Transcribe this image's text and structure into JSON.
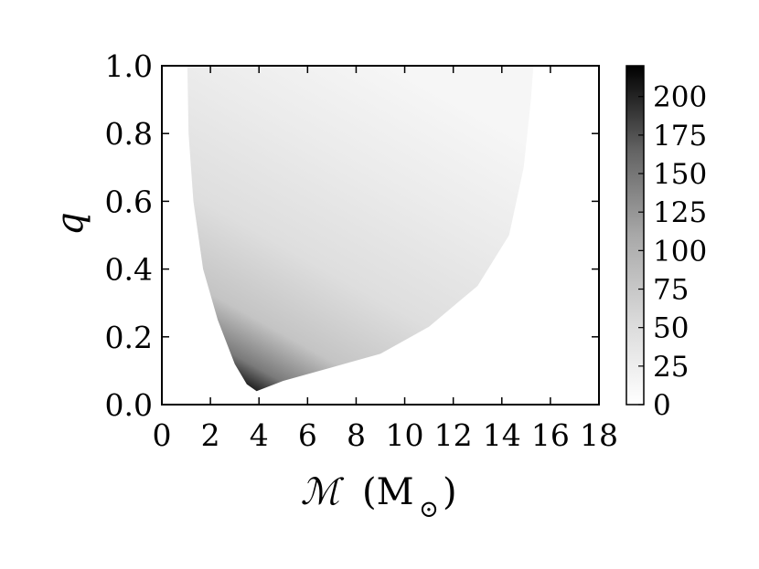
{
  "chart_data": {
    "type": "heatmap",
    "title": "",
    "xlabel": "ℳ",
    "xlabel_unit_open": "(M",
    "xlabel_unit_subscript": "⊙",
    "xlabel_unit_close": ")",
    "ylabel": "q",
    "xlim": [
      0,
      18
    ],
    "ylim": [
      0.0,
      1.0
    ],
    "x_ticks": [
      "0",
      "2",
      "4",
      "6",
      "8",
      "10",
      "12",
      "14",
      "16",
      "18"
    ],
    "y_ticks": [
      "0.0",
      "0.2",
      "0.4",
      "0.6",
      "0.8",
      "1.0"
    ],
    "colorbar": {
      "ticks": [
        "0",
        "25",
        "50",
        "75",
        "100",
        "125",
        "150",
        "175",
        "200"
      ],
      "range": [
        0,
        220
      ],
      "colormap": "Greys"
    },
    "region": {
      "description_points_left": [
        [
          1.05,
          1.0
        ],
        [
          1.1,
          0.8
        ],
        [
          1.3,
          0.6
        ],
        [
          1.7,
          0.4
        ],
        [
          2.3,
          0.25
        ],
        [
          3.0,
          0.12
        ],
        [
          3.5,
          0.06
        ],
        [
          3.9,
          0.04
        ]
      ],
      "description_points_right": [
        [
          3.9,
          0.04
        ],
        [
          5.0,
          0.07
        ],
        [
          7.0,
          0.11
        ],
        [
          9.0,
          0.15
        ],
        [
          11.0,
          0.23
        ],
        [
          13.0,
          0.35
        ],
        [
          14.3,
          0.5
        ],
        [
          14.9,
          0.7
        ],
        [
          15.2,
          0.9
        ],
        [
          15.3,
          1.0
        ]
      ],
      "peak": [
        3.9,
        0.04
      ]
    }
  }
}
